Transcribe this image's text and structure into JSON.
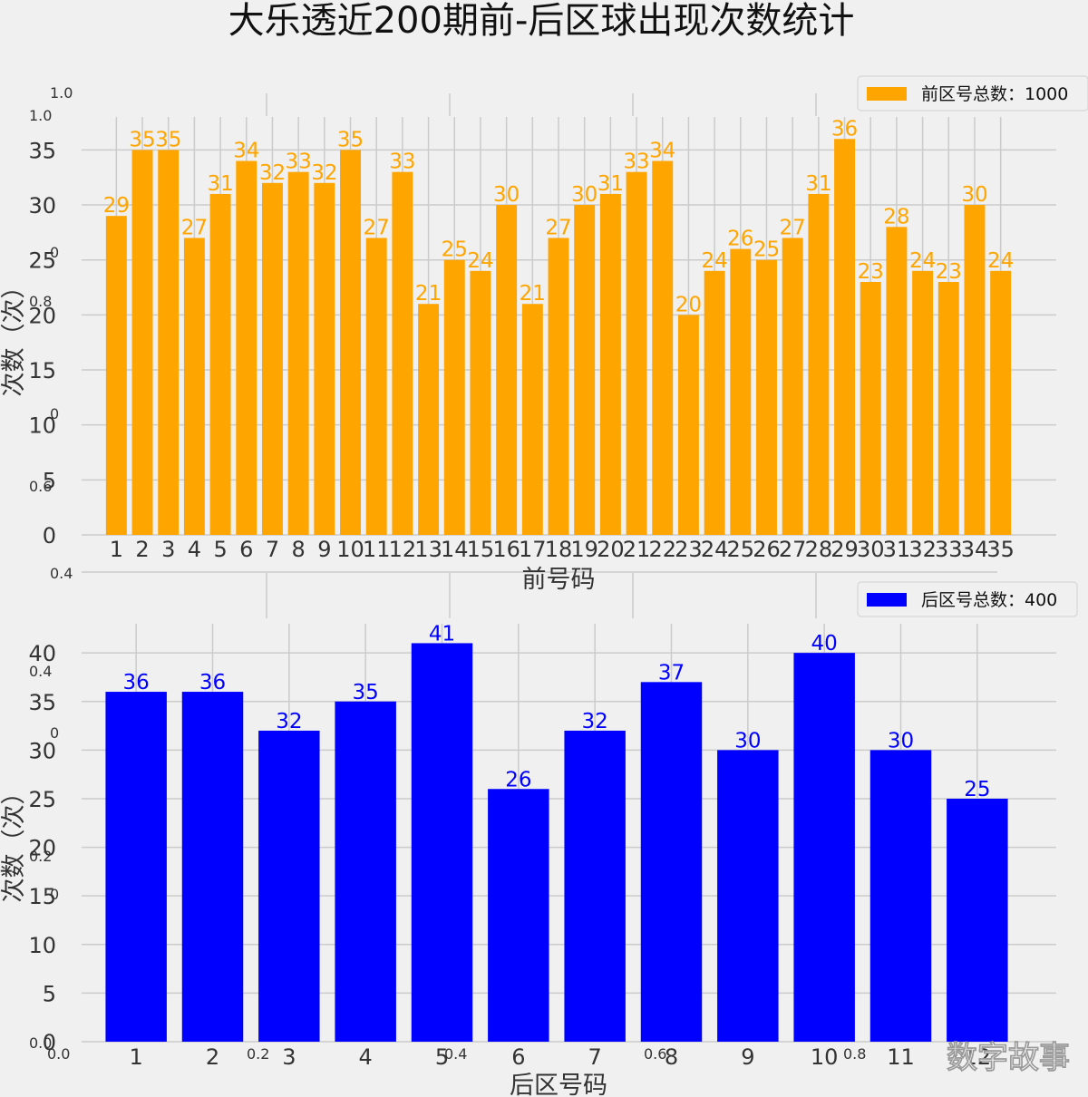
{
  "title": "大乐透近200期前-后区球出现次数统计",
  "watermark": "数字故事",
  "background_axis_ticks": {
    "top_left": [
      "1.0",
      "1.0"
    ],
    "left": [
      "0",
      "0.8",
      "0",
      "0.6",
      "0.4",
      "0.4",
      "0",
      "0.2",
      "0",
      "0.0"
    ],
    "bottom": [
      "0.0",
      "0.2",
      "0.4",
      "0.6",
      "0.8"
    ]
  },
  "colors": {
    "front": "#FFA500",
    "back": "#0000FF",
    "grid": "#cbcbcb"
  },
  "chart_data": [
    {
      "type": "bar",
      "xlabel": "前号码",
      "ylabel": "次数（次）",
      "legend": "前区号总数：1000",
      "legend_position": "top-right",
      "grid": true,
      "ylim": [
        0,
        38
      ],
      "yticks": [
        0,
        5,
        10,
        15,
        20,
        25,
        30,
        35
      ],
      "categories": [
        "1",
        "2",
        "3",
        "4",
        "5",
        "6",
        "7",
        "8",
        "9",
        "10",
        "11",
        "12",
        "13",
        "14",
        "15",
        "16",
        "17",
        "18",
        "19",
        "20",
        "21",
        "22",
        "23",
        "24",
        "25",
        "26",
        "27",
        "28",
        "29",
        "30",
        "31",
        "32",
        "33",
        "34",
        "35"
      ],
      "values": [
        29,
        35,
        35,
        27,
        31,
        34,
        32,
        33,
        32,
        35,
        27,
        33,
        21,
        25,
        24,
        30,
        21,
        27,
        30,
        31,
        33,
        34,
        20,
        24,
        26,
        25,
        27,
        31,
        36,
        23,
        28,
        24,
        23,
        30,
        24
      ]
    },
    {
      "type": "bar",
      "xlabel": "后区号码",
      "ylabel": "次数（次）",
      "legend": "后区号总数：400",
      "legend_position": "top-right",
      "grid": true,
      "ylim": [
        0,
        43
      ],
      "yticks": [
        0,
        5,
        10,
        15,
        20,
        25,
        30,
        35,
        40
      ],
      "categories": [
        "1",
        "2",
        "3",
        "4",
        "5",
        "6",
        "7",
        "8",
        "9",
        "10",
        "11",
        "12"
      ],
      "values": [
        36,
        36,
        32,
        35,
        41,
        26,
        32,
        37,
        30,
        40,
        30,
        25
      ]
    }
  ]
}
